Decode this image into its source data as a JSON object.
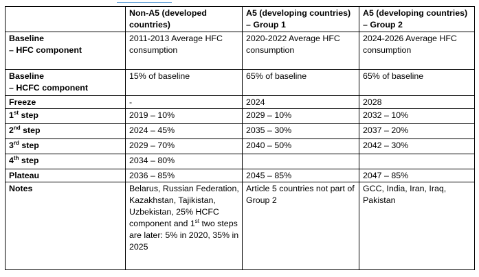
{
  "header": {
    "blank": "",
    "col1": "Non-A5 (developed countries)",
    "col2": "A5 (developing countries) – Group 1",
    "col3": "A5 (developing countries) – Group 2"
  },
  "rows": [
    {
      "label_line1": "Baseline",
      "label_line2": "– HFC component",
      "col1": "2011-2013 Average HFC consumption",
      "col2": "2020-2022 Average HFC consumption",
      "col3": "2024-2026 Average HFC consumption"
    },
    {
      "label_line1": "Baseline",
      "label_line2": "– HCFC component",
      "col1": "15% of baseline",
      "col2": "65% of baseline",
      "col3": "65% of baseline"
    },
    {
      "label": "Freeze",
      "col1": "-",
      "col2": "2024",
      "col3": "2028"
    },
    {
      "label_num": "1",
      "label_sup": "st",
      "label_word": "step",
      "col1": "2019 – 10%",
      "col2": "2029 – 10%",
      "col3": "2032 – 10%"
    },
    {
      "label_num": "2",
      "label_sup": "nd",
      "label_word": "step",
      "col1": "2024 – 45%",
      "col2": "2035 – 30%",
      "col3": "2037 – 20%"
    },
    {
      "label_num": "3",
      "label_sup": "rd",
      "label_word": "step",
      "col1": "2029 – 70%",
      "col2": "2040 – 50%",
      "col3": "2042 – 30%"
    },
    {
      "label_num": "4",
      "label_sup": "th",
      "label_word": "step",
      "col1": "2034 – 80%",
      "col2": "",
      "col3": ""
    },
    {
      "label": "Plateau",
      "col1": "2036 – 85%",
      "col2": "2045 – 85%",
      "col3": "2047 – 85%"
    },
    {
      "label": "Notes",
      "col1_part1": "Belarus, Russian Federation, Kazakhstan, Tajikistan, Uzbekistan, 25% HCFC component and 1",
      "col1_sup": "st",
      "col1_part2": " two steps are later: 5% in 2020, 35% in 2025",
      "col2": "Article 5 countries not part of Group 2",
      "col3": "GCC, India, Iran, Iraq, Pakistan"
    }
  ]
}
